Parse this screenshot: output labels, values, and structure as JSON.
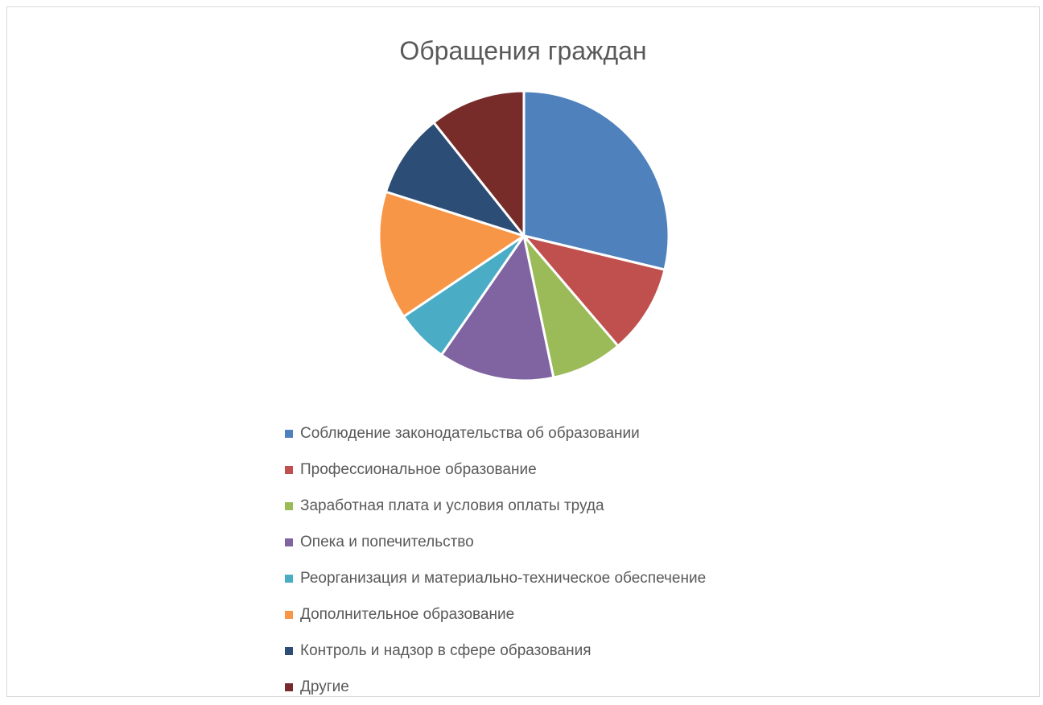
{
  "chart_data": {
    "type": "pie",
    "title": "Обращения граждан",
    "categories": [
      "Соблюдение законодательства об образовании",
      "Профессиональное образование",
      "Заработная плата и условия оплаты труда",
      "Опека и попечительство",
      "Реорганизация и материально-техническое обеспечение",
      "Дополнительное образование",
      "Контроль и надзор в сфере образования",
      "Другие"
    ],
    "values": [
      28.5,
      9.9,
      7.9,
      12.8,
      5.9,
      14.2,
      9.3,
      10.6
    ],
    "value_unit": "percent (estimated)",
    "colors": [
      "#4f81bd",
      "#c0504d",
      "#9bbb59",
      "#8064a2",
      "#4bacc6",
      "#f79646",
      "#2c4d75",
      "#772c2a"
    ],
    "start_angle": "12 o'clock",
    "direction": "clockwise",
    "legend_position": "bottom"
  }
}
